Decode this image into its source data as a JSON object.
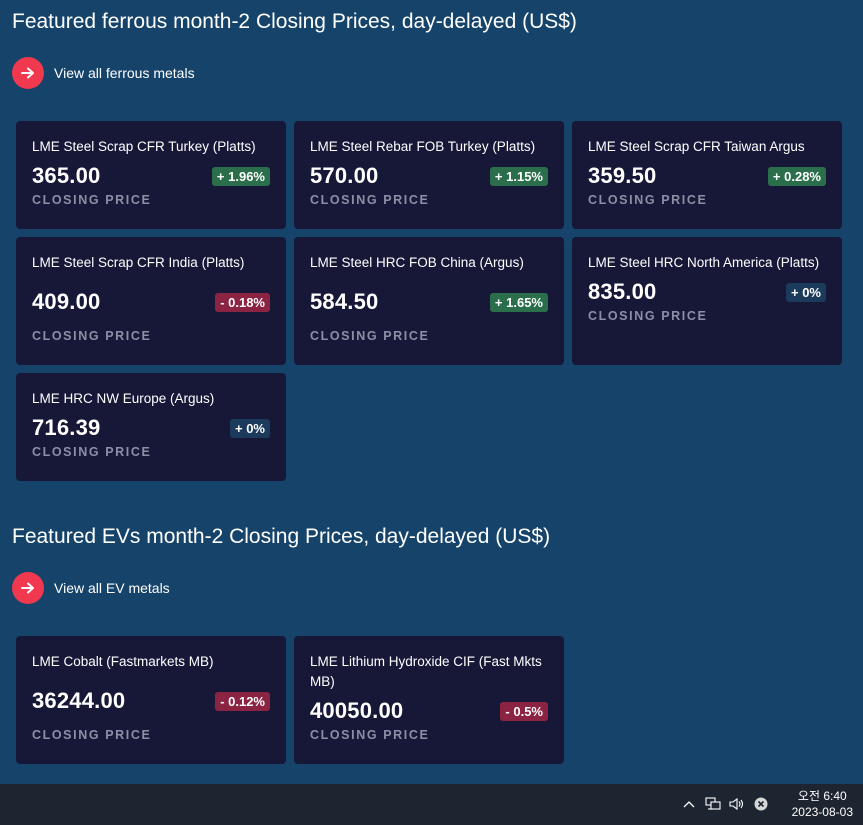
{
  "ferrous": {
    "title": "Featured ferrous month-2 Closing Prices, day-delayed (US$)",
    "view_all": "View all ferrous metals",
    "cards": [
      {
        "name": "LME Steel Scrap CFR Turkey (Platts)",
        "price": "365.00",
        "change": "+ 1.96%",
        "direction": "up",
        "label": "CLOSING PRICE"
      },
      {
        "name": "LME Steel Rebar FOB Turkey (Platts)",
        "price": "570.00",
        "change": "+ 1.15%",
        "direction": "up",
        "label": "CLOSING PRICE"
      },
      {
        "name": "LME Steel Scrap CFR Taiwan Argus",
        "price": "359.50",
        "change": "+ 0.28%",
        "direction": "up",
        "label": "CLOSING PRICE"
      },
      {
        "name": "LME Steel Scrap CFR India (Platts)",
        "price": "409.00",
        "change": "- 0.18%",
        "direction": "down",
        "label": "CLOSING PRICE"
      },
      {
        "name": "LME Steel HRC FOB China (Argus)",
        "price": "584.50",
        "change": "+ 1.65%",
        "direction": "up",
        "label": "CLOSING PRICE"
      },
      {
        "name": "LME Steel HRC North America (Platts)",
        "price": "835.00",
        "change": "+ 0%",
        "direction": "flat",
        "label": "CLOSING PRICE"
      },
      {
        "name": "LME HRC NW Europe (Argus)",
        "price": "716.39",
        "change": "+ 0%",
        "direction": "flat",
        "label": "CLOSING PRICE"
      }
    ]
  },
  "evs": {
    "title": "Featured EVs month-2 Closing Prices, day-delayed (US$)",
    "view_all": "View all EV metals",
    "cards": [
      {
        "name": "LME Cobalt (Fastmarkets MB)",
        "price": "36244.00",
        "change": "- 0.12%",
        "direction": "down",
        "label": "CLOSING PRICE"
      },
      {
        "name": "LME Lithium Hydroxide CIF (Fast Mkts MB)",
        "price": "40050.00",
        "change": "- 0.5%",
        "direction": "down",
        "label": "CLOSING PRICE"
      }
    ]
  },
  "taskbar": {
    "time": "오전 6:40",
    "date": "2023-08-03",
    "icons": [
      "chevron-up-icon",
      "network-icon",
      "volume-icon",
      "close-circle-icon"
    ]
  },
  "colors": {
    "background": "#16436a",
    "card": "#171838",
    "accent": "#f0384e",
    "up": "#2b6e4b",
    "down": "#8b2342",
    "flat": "#1b3a5c"
  }
}
